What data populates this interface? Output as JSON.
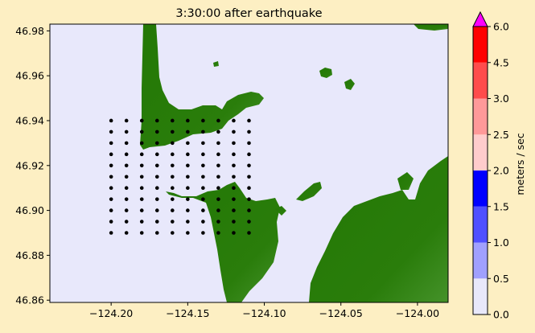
{
  "chart_data": {
    "type": "heatmap",
    "title": "3:30:00 after earthquake",
    "xlabel": "",
    "ylabel": "",
    "xlim": [
      -124.24,
      -123.98
    ],
    "ylim": [
      46.859,
      46.983
    ],
    "x_ticks": [
      -124.2,
      -124.15,
      -124.1,
      -124.05,
      -124.0
    ],
    "x_tick_labels": [
      "−124.20",
      "−124.15",
      "−124.10",
      "−124.05",
      "−124.00"
    ],
    "y_ticks": [
      46.86,
      46.88,
      46.9,
      46.92,
      46.94,
      46.96,
      46.98
    ],
    "y_tick_labels": [
      "46.86",
      "46.88",
      "46.90",
      "46.92",
      "46.94",
      "46.96",
      "46.98"
    ],
    "grid": false,
    "gauge_points": {
      "x_start": -124.2,
      "x_step": 0.01,
      "x_count": 10,
      "y_start": 46.89,
      "y_step": 0.005,
      "y_count": 11
    },
    "colorbar": {
      "label": "meters / sec",
      "levels": [
        0.0,
        0.5,
        1.0,
        1.5,
        2.0,
        2.5,
        3.0,
        4.5,
        6.0
      ],
      "tick_labels": [
        "0.0",
        "0.5",
        "1.0",
        "1.5",
        "2.0",
        "2.5",
        "3.0",
        "4.5",
        "6.0"
      ],
      "colors": [
        "#e8e8fb",
        "#a0a0fe",
        "#5050ff",
        "#0000ff",
        "#ffcccc",
        "#ff9999",
        "#ff4c4c",
        "#ff0000"
      ],
      "extend_color": "#ff00ff",
      "extend": "max"
    },
    "colors": {
      "water": "#e8e8fb",
      "land": "#237805",
      "land_high": "#3a8a1c"
    }
  }
}
